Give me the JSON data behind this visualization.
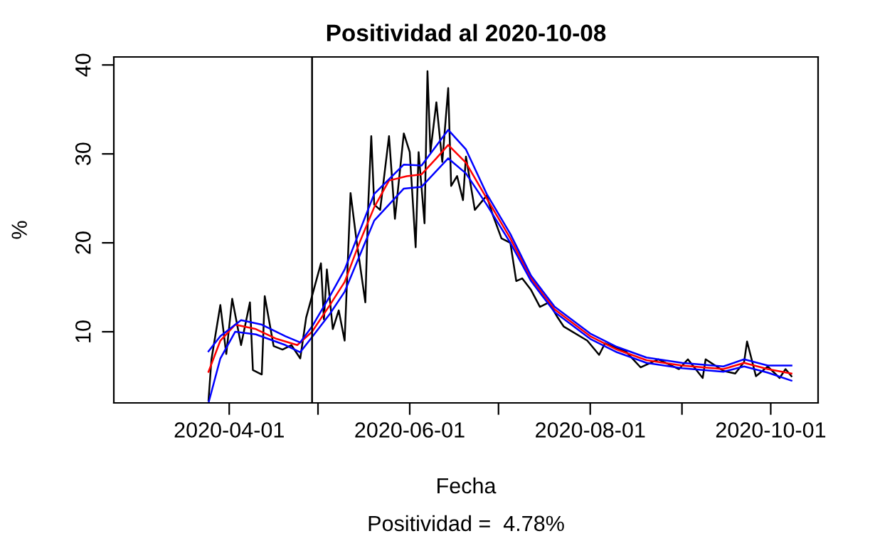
{
  "chart_data": {
    "type": "line",
    "title": "Positividad al 2020-10-08",
    "xlabel": "Fecha",
    "ylabel": "%",
    "annotations": [
      "Positividad =  4.78%"
    ],
    "xlim": [
      "2020-02-22",
      "2020-10-17"
    ],
    "ylim": [
      2,
      40.9
    ],
    "xticks": [
      {
        "value": "2020-04-01",
        "label": "2020-04-01"
      },
      {
        "value": "2020-05-01",
        "label": null
      },
      {
        "value": "2020-06-01",
        "label": "2020-06-01"
      },
      {
        "value": "2020-07-01",
        "label": null
      },
      {
        "value": "2020-08-01",
        "label": "2020-08-01"
      },
      {
        "value": "2020-09-01",
        "label": null
      },
      {
        "value": "2020-10-01",
        "label": "2020-10-01"
      }
    ],
    "yticks": [
      10,
      20,
      30,
      40
    ],
    "grid": false,
    "legend": false,
    "ref_lines": [
      {
        "axis": "x",
        "value": "2020-04-29",
        "color": "#000000"
      }
    ],
    "series": [
      {
        "color": "#000000",
        "x": [
          "2020-03-25",
          "2020-03-26",
          "2020-03-29",
          "2020-03-31",
          "2020-04-02",
          "2020-04-05",
          "2020-04-08",
          "2020-04-09",
          "2020-04-12",
          "2020-04-13",
          "2020-04-16",
          "2020-04-19",
          "2020-04-22",
          "2020-04-25",
          "2020-04-27",
          "2020-05-02",
          "2020-05-03",
          "2020-05-04",
          "2020-05-06",
          "2020-05-08",
          "2020-05-10",
          "2020-05-12",
          "2020-05-14",
          "2020-05-17",
          "2020-05-18",
          "2020-05-19",
          "2020-05-20",
          "2020-05-22",
          "2020-05-25",
          "2020-05-27",
          "2020-05-30",
          "2020-06-01",
          "2020-06-03",
          "2020-06-04",
          "2020-06-06",
          "2020-06-07",
          "2020-06-08",
          "2020-06-10",
          "2020-06-12",
          "2020-06-14",
          "2020-06-15",
          "2020-06-17",
          "2020-06-19",
          "2020-06-20",
          "2020-06-23",
          "2020-06-27",
          "2020-06-29",
          "2020-07-02",
          "2020-07-05",
          "2020-07-07",
          "2020-07-09",
          "2020-07-12",
          "2020-07-15",
          "2020-07-18",
          "2020-07-21",
          "2020-07-23",
          "2020-07-31",
          "2020-08-04",
          "2020-08-06",
          "2020-08-13",
          "2020-08-18",
          "2020-08-24",
          "2020-08-31",
          "2020-09-03",
          "2020-09-08",
          "2020-09-09",
          "2020-09-15",
          "2020-09-19",
          "2020-09-22",
          "2020-09-23",
          "2020-09-26",
          "2020-09-30",
          "2020-10-04",
          "2020-10-06",
          "2020-10-08"
        ],
        "values": [
          2.3,
          6.9,
          13.0,
          7.5,
          13.7,
          8.5,
          13.3,
          5.7,
          5.2,
          14.0,
          8.4,
          8.0,
          8.5,
          7.0,
          11.6,
          17.7,
          11.4,
          17.0,
          10.3,
          12.4,
          9.0,
          25.6,
          20.3,
          13.3,
          24.5,
          32.0,
          24.3,
          23.7,
          32.0,
          22.7,
          32.3,
          30.2,
          19.5,
          30.2,
          22.2,
          39.3,
          30.2,
          35.8,
          29.1,
          37.4,
          26.4,
          27.5,
          24.8,
          29.7,
          23.7,
          25.3,
          23.2,
          20.5,
          20.0,
          15.7,
          16.0,
          14.7,
          12.8,
          13.3,
          11.6,
          10.6,
          9.0,
          7.4,
          8.7,
          7.8,
          6.0,
          6.9,
          5.8,
          6.9,
          4.8,
          6.9,
          5.6,
          5.3,
          6.6,
          8.9,
          5.0,
          6.1,
          4.8,
          5.8,
          5.0
        ]
      },
      {
        "color": "#ff0000",
        "x": [
          "2020-03-25",
          "2020-03-29",
          "2020-04-03",
          "2020-04-10",
          "2020-04-17",
          "2020-04-24",
          "2020-04-29",
          "2020-05-05",
          "2020-05-10",
          "2020-05-15",
          "2020-05-20",
          "2020-05-25",
          "2020-05-31",
          "2020-06-05",
          "2020-06-10",
          "2020-06-14",
          "2020-06-20",
          "2020-06-27",
          "2020-07-05",
          "2020-07-12",
          "2020-07-20",
          "2020-08-01",
          "2020-08-10",
          "2020-08-20",
          "2020-09-01",
          "2020-09-15",
          "2020-09-22",
          "2020-09-30",
          "2020-10-08"
        ],
        "values": [
          5.5,
          9.0,
          10.8,
          10.3,
          9.2,
          8.5,
          10.0,
          13.0,
          15.6,
          20.0,
          24.0,
          27.0,
          27.5,
          27.7,
          29.5,
          31.0,
          29.0,
          25.0,
          20.5,
          16.0,
          12.5,
          9.5,
          8.0,
          6.8,
          6.2,
          5.8,
          6.5,
          5.8,
          5.3
        ]
      },
      {
        "color": "#0000ff",
        "x": [
          "2020-03-25",
          "2020-03-29",
          "2020-04-05",
          "2020-04-12",
          "2020-04-20",
          "2020-04-25",
          "2020-04-29",
          "2020-05-05",
          "2020-05-10",
          "2020-05-20",
          "2020-05-30",
          "2020-06-05",
          "2020-06-14",
          "2020-06-20",
          "2020-06-27",
          "2020-07-05",
          "2020-07-12",
          "2020-07-20",
          "2020-08-01",
          "2020-08-10",
          "2020-08-20",
          "2020-09-01",
          "2020-09-15",
          "2020-09-22",
          "2020-09-30",
          "2020-10-08"
        ],
        "values": [
          7.8,
          9.5,
          11.3,
          10.8,
          9.5,
          8.8,
          10.6,
          14.0,
          17.0,
          25.5,
          28.8,
          28.7,
          32.7,
          30.5,
          25.5,
          21.0,
          16.3,
          12.8,
          9.8,
          8.3,
          7.1,
          6.5,
          6.1,
          6.9,
          6.2,
          6.2
        ]
      },
      {
        "color": "#0000ff",
        "x": [
          "2020-03-25",
          "2020-03-29",
          "2020-04-03",
          "2020-04-10",
          "2020-04-20",
          "2020-04-25",
          "2020-04-29",
          "2020-05-05",
          "2020-05-10",
          "2020-05-20",
          "2020-05-30",
          "2020-06-05",
          "2020-06-14",
          "2020-06-20",
          "2020-06-27",
          "2020-07-05",
          "2020-07-12",
          "2020-07-20",
          "2020-08-01",
          "2020-08-10",
          "2020-08-20",
          "2020-09-01",
          "2020-09-15",
          "2020-09-22",
          "2020-09-30",
          "2020-10-08"
        ],
        "values": [
          2.0,
          7.0,
          10.0,
          9.7,
          8.5,
          7.7,
          9.4,
          12.0,
          14.5,
          22.5,
          26.1,
          26.3,
          29.5,
          27.8,
          24.3,
          20.0,
          15.7,
          12.2,
          9.2,
          7.7,
          6.5,
          5.9,
          5.5,
          6.1,
          5.4,
          4.5
        ]
      }
    ]
  }
}
